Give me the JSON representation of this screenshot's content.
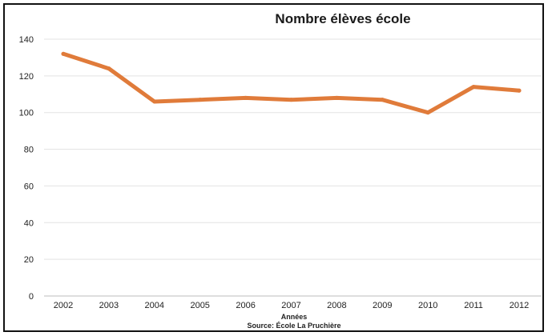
{
  "chart_data": {
    "type": "line",
    "title": "Nombre élèves école",
    "xlabel": "Années",
    "source": "Source: École La Pruchière",
    "categories": [
      "2002",
      "2003",
      "2004",
      "2005",
      "2006",
      "2007",
      "2008",
      "2009",
      "2010",
      "2011",
      "2012"
    ],
    "series": [
      {
        "values": [
          132,
          124,
          106,
          107,
          108,
          107,
          108,
          107,
          100,
          114,
          112
        ]
      }
    ],
    "ylim": [
      0,
      140
    ],
    "yticks": [
      "0",
      "20",
      "40",
      "60",
      "80",
      "100",
      "120",
      "140"
    ],
    "grid": true,
    "line_color": "#e07b3a"
  }
}
